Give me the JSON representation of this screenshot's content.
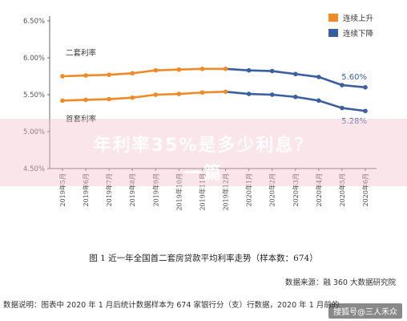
{
  "chart_data": {
    "type": "line",
    "categories": [
      "2019年5月",
      "2019年6月",
      "2019年7月",
      "2019年8月",
      "2019年9月",
      "2019年10月",
      "2019年11月",
      "2019年12月",
      "2020年1月",
      "2020年2月",
      "2020年3月",
      "2020年4月",
      "2020年5月",
      "2020年6月"
    ],
    "series": [
      {
        "name": "二套利率",
        "values": [
          5.75,
          5.76,
          5.77,
          5.79,
          5.83,
          5.84,
          5.85,
          5.85,
          5.83,
          5.82,
          5.78,
          5.74,
          5.63,
          5.6
        ]
      },
      {
        "name": "首套利率",
        "values": [
          5.42,
          5.43,
          5.44,
          5.46,
          5.5,
          5.51,
          5.53,
          5.54,
          5.51,
          5.5,
          5.47,
          5.42,
          5.32,
          5.28
        ]
      }
    ],
    "segment_labels": [
      "连续上升",
      "连续下降"
    ],
    "segment_colors": {
      "rise": "#F08A24",
      "fall": "#3A5FA0"
    },
    "ylim": [
      4.5,
      6.5
    ],
    "yticks": [
      "4.50%",
      "5.00%",
      "5.50%",
      "6.00%",
      "6.50%"
    ],
    "end_labels": [
      "5.60%",
      "5.28%"
    ],
    "grid": false,
    "legend_position": "top-right"
  },
  "caption": "图 1  近一年全国首二套房贷款平均利率走势（样本数：674）",
  "source": "数据来源：融 360 大数据研究院",
  "note": "数据说明：图表中 2020 年 1 月后统计数据样本为 674 家银行分（支）行数据，2020 年 1 月前的",
  "banner": {
    "line1": "年利率35%是多少利息？",
    "line2": "一篇"
  },
  "watermark": "搜狐号@三人禾众"
}
